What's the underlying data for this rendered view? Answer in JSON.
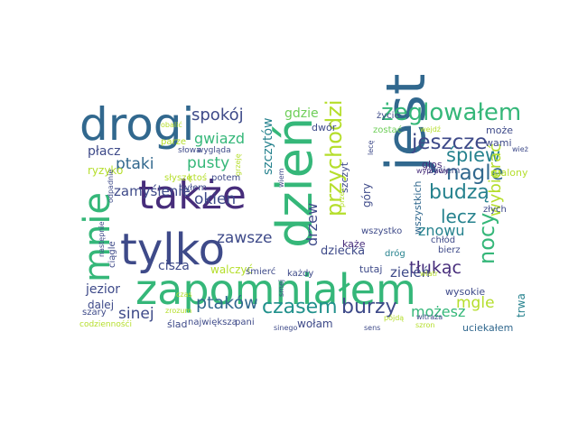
{
  "words": [
    {
      "text": "zapomniałem",
      "color": "#35b779"
    },
    {
      "text": "jest",
      "color": "#31688e"
    },
    {
      "text": "tylko",
      "color": "#3e4a89"
    },
    {
      "text": "także",
      "color": "#472d7b"
    },
    {
      "text": "dzień",
      "color": "#35b779"
    },
    {
      "text": "drogi",
      "color": "#31688e"
    },
    {
      "text": "mnie",
      "color": "#35b779"
    },
    {
      "text": "żeglowałem",
      "color": "#35b779"
    },
    {
      "text": "przychodzi",
      "color": "#b5de2b"
    },
    {
      "text": "czasem",
      "color": "#21918c"
    },
    {
      "text": "burzy",
      "color": "#3e4a89"
    },
    {
      "text": "jeszcze",
      "color": "#3e4a89"
    },
    {
      "text": "nagle",
      "color": "#31688e"
    },
    {
      "text": "śpiew",
      "color": "#26828e"
    },
    {
      "text": "nocy",
      "color": "#35b779"
    },
    {
      "text": "wybierać",
      "color": "#b5de2b"
    },
    {
      "text": "budzą",
      "color": "#26828e"
    },
    {
      "text": "lecz",
      "color": "#26828e"
    },
    {
      "text": "ptaki",
      "color": "#31688e"
    },
    {
      "text": "pusty",
      "color": "#35b779"
    },
    {
      "text": "spokój",
      "color": "#3e4a89"
    },
    {
      "text": "gdzie",
      "color": "#6ece58"
    },
    {
      "text": "gwiazd",
      "color": "#35b779"
    },
    {
      "text": "zamyślenie",
      "color": "#3e4a89"
    },
    {
      "text": "okien",
      "color": "#3e4a89"
    },
    {
      "text": "ptaków",
      "color": "#31688e"
    },
    {
      "text": "sinej",
      "color": "#3e4a89"
    },
    {
      "text": "zawsze",
      "color": "#3e4a89"
    },
    {
      "text": "drzew",
      "color": "#3e4a89"
    },
    {
      "text": "szczytów",
      "color": "#26828e"
    },
    {
      "text": "szczyt",
      "color": "#3e4a89"
    },
    {
      "text": "dziecka",
      "color": "#3e4a89"
    },
    {
      "text": "znowu",
      "color": "#26828e"
    },
    {
      "text": "tłukąc",
      "color": "#472d7b"
    },
    {
      "text": "mgle",
      "color": "#b5de2b"
    },
    {
      "text": "możesz",
      "color": "#35b779"
    },
    {
      "text": "cisza",
      "color": "#3e4a89"
    },
    {
      "text": "góry",
      "color": "#3e4a89"
    },
    {
      "text": "wszystkich",
      "color": "#31688e"
    },
    {
      "text": "trwa",
      "color": "#26828e"
    },
    {
      "text": "zieleń",
      "color": "#3e4a89"
    },
    {
      "text": "płacz",
      "color": "#3e4a89"
    },
    {
      "text": "jezior",
      "color": "#3e4a89"
    },
    {
      "text": "dalej",
      "color": "#3e4a89"
    },
    {
      "text": "walczyć",
      "color": "#b5de2b"
    },
    {
      "text": "każe",
      "color": "#472d7b"
    },
    {
      "text": "tutaj",
      "color": "#3e4a89"
    },
    {
      "text": "dwór",
      "color": "#3e4a89"
    },
    {
      "text": "życie",
      "color": "#3e4a89"
    },
    {
      "text": "zostać",
      "color": "#6ece58"
    },
    {
      "text": "może",
      "color": "#3e4a89"
    },
    {
      "text": "wami",
      "color": "#3e4a89"
    },
    {
      "text": "wysokie",
      "color": "#3e4a89"
    },
    {
      "text": "uciekałem",
      "color": "#31688e"
    },
    {
      "text": "wszystko",
      "color": "#3e4a89"
    },
    {
      "text": "głos",
      "color": "#472d7b"
    },
    {
      "text": "życiem",
      "color": "#3e4a89"
    },
    {
      "text": "szalony",
      "color": "#b5de2b"
    },
    {
      "text": "złych",
      "color": "#3e4a89"
    },
    {
      "text": "chłód",
      "color": "#3e4a89"
    },
    {
      "text": "bierz",
      "color": "#3e4a89"
    },
    {
      "text": "dróg",
      "color": "#26828e"
    },
    {
      "text": "śmierć",
      "color": "#3e4a89"
    },
    {
      "text": "każdy",
      "color": "#3e4a89"
    },
    {
      "text": "wołam",
      "color": "#3e4a89"
    },
    {
      "text": "pani",
      "color": "#3e4a89"
    },
    {
      "text": "ślad",
      "color": "#3e4a89"
    },
    {
      "text": "największa",
      "color": "#3e4a89"
    },
    {
      "text": "ciągle",
      "color": "#3e4a89"
    },
    {
      "text": "szary",
      "color": "#3e4a89"
    },
    {
      "text": "ryzyko",
      "color": "#b5de2b"
    },
    {
      "text": "parze",
      "color": "#b5de2b"
    },
    {
      "text": "słowa",
      "color": "#3e4a89"
    },
    {
      "text": "wygląda",
      "color": "#3e4a89"
    },
    {
      "text": "słyszę",
      "color": "#b5de2b"
    },
    {
      "text": "ktoś",
      "color": "#b5de2b"
    },
    {
      "text": "potem",
      "color": "#3e4a89"
    },
    {
      "text": "byłem",
      "color": "#3e4a89"
    },
    {
      "text": "obalić",
      "color": "#b5de2b"
    },
    {
      "text": "codziennośći",
      "color": "#b5de2b"
    },
    {
      "text": "czas",
      "color": "#b5de2b"
    },
    {
      "text": "wiem",
      "color": "#3e4a89"
    },
    {
      "text": "smej",
      "color": "#3e4a89"
    },
    {
      "text": "wiatr",
      "color": "#b5de2b"
    },
    {
      "text": "wyprawy",
      "color": "#472d7b"
    },
    {
      "text": "przez",
      "color": "#b5de2b"
    },
    {
      "text": "wejdź",
      "color": "#b5de2b"
    },
    {
      "text": "wież",
      "color": "#3e4a89"
    },
    {
      "text": "lecę",
      "color": "#3e4a89"
    },
    {
      "text": "szron",
      "color": "#b5de2b"
    },
    {
      "text": "witraża",
      "color": "#3e4a89"
    },
    {
      "text": "pójdą",
      "color": "#b5de2b"
    },
    {
      "text": "sens",
      "color": "#3e4a89"
    },
    {
      "text": "sinego",
      "color": "#3e4a89"
    },
    {
      "text": "zrozum",
      "color": "#b5de2b"
    },
    {
      "text": "następnie",
      "color": "#3e4a89"
    },
    {
      "text": "odpadnie",
      "color": "#3e4a89"
    },
    {
      "text": "grzeję",
      "color": "#b5de2b"
    }
  ]
}
